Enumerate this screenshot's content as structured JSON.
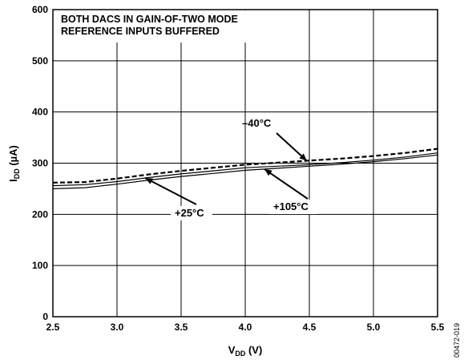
{
  "chart_data": {
    "type": "line",
    "notes": [
      "BOTH DACS IN GAIN-OF-TWO MODE",
      "REFERENCE INPUTS BUFFERED"
    ],
    "xlabel": {
      "main": "V",
      "sub": "DD",
      "unit": " (V)"
    },
    "ylabel": {
      "main": "I",
      "sub": "DD",
      "unit": " (µA)"
    },
    "xlim": [
      2.5,
      5.5
    ],
    "ylim": [
      0,
      600
    ],
    "x_ticks": [
      "2.5",
      "3.0",
      "3.5",
      "4.0",
      "4.5",
      "5.0",
      "5.5"
    ],
    "y_ticks": [
      "0",
      "100",
      "200",
      "300",
      "400",
      "500",
      "600"
    ],
    "grid": true,
    "figure_id": "00472-019",
    "series": [
      {
        "name": "–40°C",
        "style": "dashed",
        "color": "#000000",
        "x": [
          2.5,
          2.75,
          3.0,
          3.25,
          3.5,
          3.75,
          4.0,
          4.25,
          4.5,
          4.75,
          5.0,
          5.25,
          5.5
        ],
        "y": [
          262,
          263,
          270,
          278,
          285,
          291,
          297,
          301,
          305,
          309,
          314,
          320,
          328
        ]
      },
      {
        "name": "+25°C",
        "style": "solid",
        "color": "#000000",
        "x": [
          2.5,
          2.75,
          3.0,
          3.25,
          3.5,
          3.75,
          4.0,
          4.25,
          4.5,
          4.75,
          5.0,
          5.25,
          5.5
        ],
        "y": [
          256,
          258,
          264,
          272,
          279,
          285,
          291,
          294,
          297,
          301,
          306,
          312,
          320
        ]
      },
      {
        "name": "+105°C",
        "style": "solid",
        "color": "#000000",
        "x": [
          2.5,
          2.75,
          3.0,
          3.25,
          3.5,
          3.75,
          4.0,
          4.25,
          4.5,
          4.75,
          5.0,
          5.25,
          5.5
        ],
        "y": [
          250,
          252,
          259,
          267,
          274,
          280,
          286,
          290,
          294,
          298,
          303,
          309,
          316
        ]
      }
    ],
    "annotations": [
      {
        "text": "–40°C",
        "series": 0
      },
      {
        "text": "+25°C",
        "series": 1
      },
      {
        "text": "+105°C",
        "series": 2
      }
    ]
  }
}
